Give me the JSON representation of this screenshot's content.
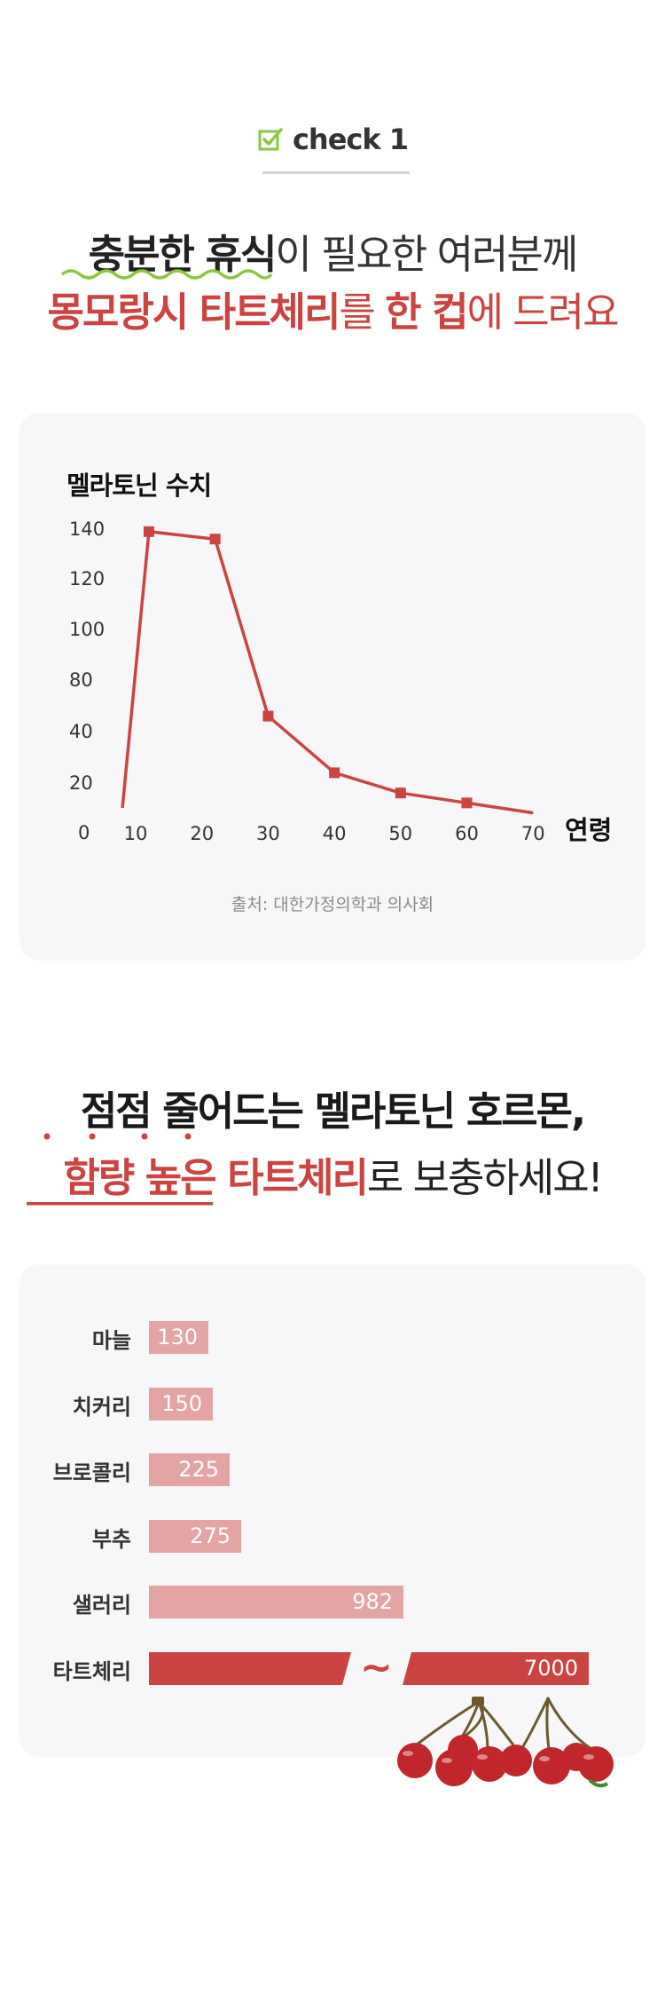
{
  "check": {
    "label": "check 1",
    "icon": "checkbox-check-icon"
  },
  "headline1": {
    "line1_strong": "충분한 휴식",
    "line1_rest": "이 필요한 여러분께",
    "line2_red": "몽모랑시 타트체리",
    "line2_mid": "를 ",
    "line2_red2": "한 컵",
    "line2_rest": "에 드려요"
  },
  "headline2": {
    "line1": "점점 줄어드는 멜라토닌 호르몬,",
    "line2_red": "함량 높은 타트체리",
    "line2_rest": "로 보충하세요!"
  },
  "colors": {
    "accent_red": "#cc4441",
    "pale_red": "#e4a4a4",
    "lime": "#8cc63f"
  },
  "chart_data": [
    {
      "type": "line",
      "title": "멜라토닌 수치",
      "xlabel": "연령",
      "ylabel": "",
      "x": [
        8,
        12,
        22,
        30,
        40,
        50,
        60,
        70
      ],
      "y": [
        10,
        139,
        136,
        52,
        24,
        16,
        12,
        8
      ],
      "xticks": [
        10,
        20,
        30,
        40,
        50,
        60,
        70
      ],
      "yticks": [
        0,
        20,
        40,
        80,
        100,
        120,
        140
      ],
      "source": "출처: 대한가정의학과 의사회"
    },
    {
      "type": "bar",
      "categories": [
        "마늘",
        "치커리",
        "브로콜리",
        "부추",
        "샐러리",
        "타트체리"
      ],
      "values": [
        130,
        150,
        225,
        275,
        982,
        7000
      ],
      "value_labels": [
        "130",
        "150",
        "225",
        "275",
        "982",
        "7000"
      ],
      "highlight": "타트체리",
      "axis_break_symbol": "~"
    }
  ]
}
